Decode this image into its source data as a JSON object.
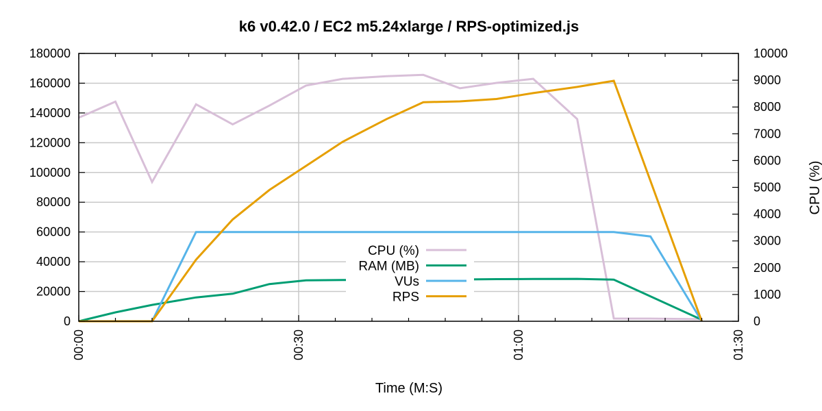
{
  "chart_data": {
    "type": "line",
    "title": "k6 v0.42.0 / EC2 m5.24xlarge / RPS-optimized.js",
    "xlabel": "Time (M:S)",
    "ylabel": "",
    "y2label": "CPU (%)",
    "xlim": [
      0,
      90
    ],
    "ylim": [
      0,
      180000
    ],
    "y2lim": [
      0,
      10000
    ],
    "x_ticks": [
      {
        "value": 0,
        "label": "00:00"
      },
      {
        "value": 30,
        "label": "00:30"
      },
      {
        "value": 60,
        "label": "01:00"
      },
      {
        "value": 90,
        "label": "01:30"
      }
    ],
    "x_minor_ticks": [
      5,
      10,
      15,
      20,
      25,
      35,
      40,
      45,
      50,
      55,
      65,
      70,
      75,
      80,
      85
    ],
    "y_ticks": [
      0,
      20000,
      40000,
      60000,
      80000,
      100000,
      120000,
      140000,
      160000,
      180000
    ],
    "y2_ticks": [
      0,
      1000,
      2000,
      3000,
      4000,
      5000,
      6000,
      7000,
      8000,
      9000,
      10000
    ],
    "grid": true,
    "legend_position": "center",
    "series": [
      {
        "name": "CPU (%)",
        "axis": "y2",
        "color": "#d8bfd8",
        "x": [
          0,
          5,
          10,
          16,
          21,
          26,
          31,
          36,
          42,
          47,
          52,
          57,
          62,
          68,
          73,
          78,
          85
        ],
        "y": [
          7600,
          8200,
          5200,
          8100,
          7350,
          8050,
          8800,
          9050,
          9150,
          9200,
          8700,
          8900,
          9050,
          7550,
          100,
          100,
          80
        ]
      },
      {
        "name": "RAM (MB)",
        "axis": "y",
        "color": "#009e73",
        "x": [
          0,
          5,
          10,
          16,
          21,
          26,
          31,
          36,
          42,
          47,
          52,
          57,
          62,
          68,
          73,
          85
        ],
        "y": [
          0,
          6000,
          11000,
          16000,
          18500,
          25000,
          27500,
          27700,
          27900,
          28000,
          28100,
          28300,
          28400,
          28500,
          28000,
          1000
        ]
      },
      {
        "name": "VUs",
        "axis": "y",
        "color": "#56b4e9",
        "x": [
          0,
          10,
          16,
          73,
          78,
          85
        ],
        "y": [
          0,
          0,
          60000,
          60000,
          57000,
          0
        ]
      },
      {
        "name": "RPS",
        "axis": "y2",
        "color": "#e69f00",
        "x": [
          0,
          10,
          16,
          21,
          26,
          31,
          36,
          42,
          47,
          52,
          57,
          62,
          68,
          73,
          85
        ],
        "y": [
          0,
          0,
          2300,
          3800,
          4900,
          5800,
          6700,
          7550,
          8180,
          8210,
          8300,
          8520,
          8750,
          8980,
          0
        ]
      }
    ]
  }
}
